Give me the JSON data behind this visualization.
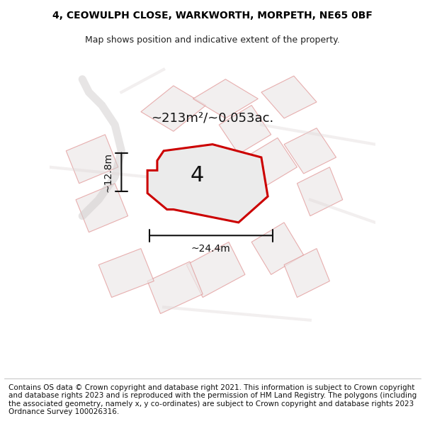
{
  "title_line1": "4, CEOWULPH CLOSE, WARKWORTH, MORPETH, NE65 0BF",
  "title_line2": "Map shows position and indicative extent of the property.",
  "area_label": "~213m²/~0.053ac.",
  "width_label": "~24.4m",
  "height_label": "~12.8m",
  "plot_number": "4",
  "footer_text": "Contains OS data © Crown copyright and database right 2021. This information is subject to Crown copyright and database rights 2023 and is reproduced with the permission of HM Land Registry. The polygons (including the associated geometry, namely x, y co-ordinates) are subject to Crown copyright and database rights 2023 Ordnance Survey 100026316.",
  "bg_color": "#f0eeee",
  "map_bg": "#f5f4f4",
  "highlight_polygon_color": "#e8e8e8",
  "highlight_polygon_edge": "#cc0000",
  "other_polygon_fill": "#e8e4e4",
  "other_polygon_edge": "#e8a0a0",
  "road_color": "#d0c8c8",
  "title_fontsize": 10,
  "footer_fontsize": 7.5
}
